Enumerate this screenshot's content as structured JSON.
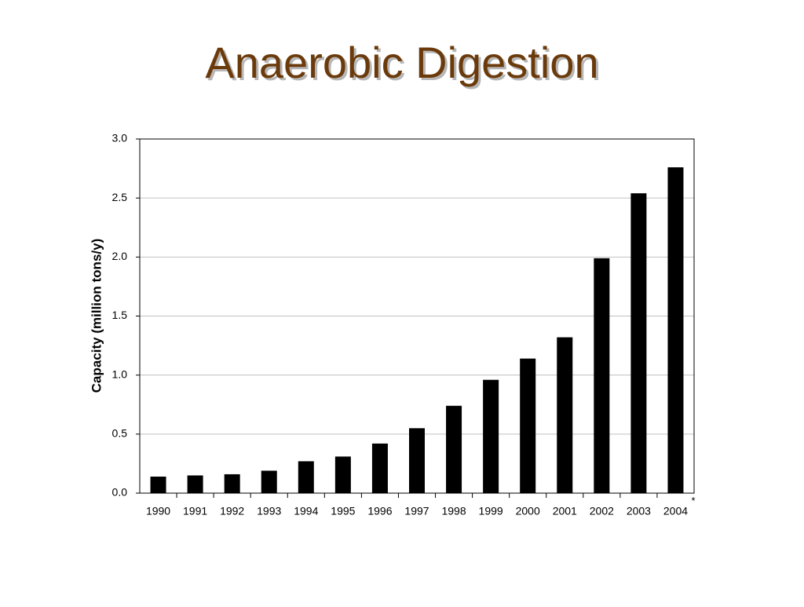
{
  "chart_data": {
    "type": "bar",
    "title": "Anaerobic Digestion",
    "y_label": "Capacity (million tons/y)",
    "categories": [
      "1990",
      "1991",
      "1992",
      "1993",
      "1994",
      "1995",
      "1996",
      "1997",
      "1998",
      "1999",
      "2000",
      "2001",
      "2002",
      "2003",
      "2004"
    ],
    "values": [
      0.14,
      0.15,
      0.16,
      0.19,
      0.27,
      0.31,
      0.42,
      0.55,
      0.74,
      0.96,
      1.14,
      1.32,
      1.99,
      2.54,
      2.76
    ],
    "color": "#000000",
    "annotation": "*",
    "ylim": [
      0,
      3
    ],
    "yticks": [
      {
        "value": 0,
        "label": "0.0"
      },
      0.5,
      {
        "value": 1,
        "label": "1.0"
      },
      1.5,
      {
        "value": 2,
        "label": "2.0"
      },
      2.5,
      {
        "value": 3,
        "label": "3.0"
      }
    ],
    "grid": true
  }
}
